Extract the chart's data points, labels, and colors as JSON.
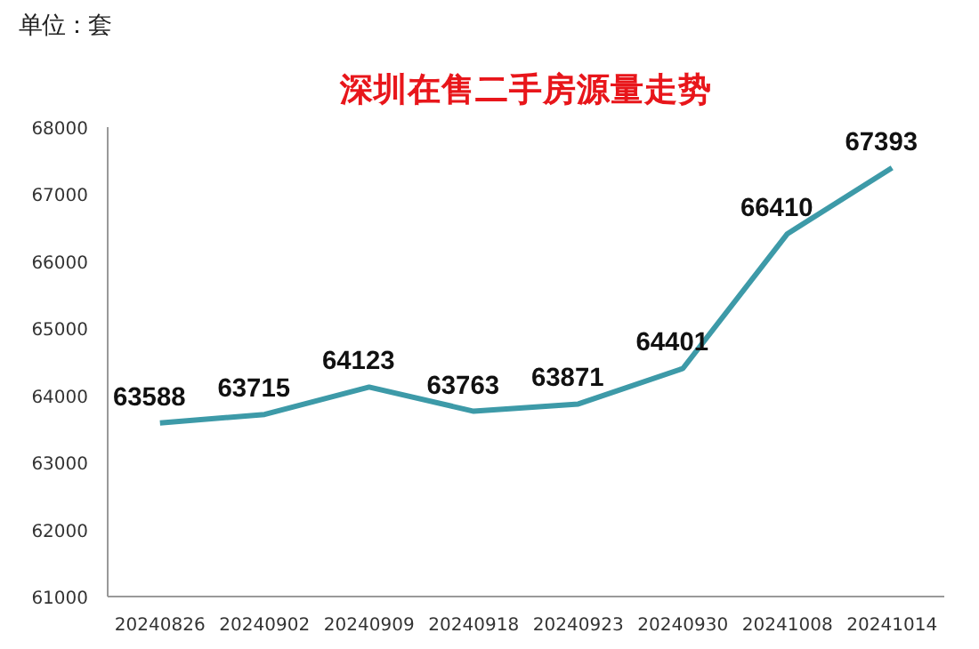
{
  "chart_data": {
    "type": "line",
    "title": "深圳在售二手房源量走势",
    "annotations": [
      "单位：套"
    ],
    "categories": [
      "20240826",
      "20240902",
      "20240909",
      "20240918",
      "20240923",
      "20240930",
      "20241008",
      "20241014"
    ],
    "series": [
      {
        "color": "#3d9aa8",
        "values": [
          63588,
          63715,
          64123,
          63763,
          63871,
          64401,
          66410,
          67393
        ]
      }
    ],
    "ylim": [
      61000,
      68000
    ],
    "yticks": [
      61000,
      62000,
      63000,
      64000,
      65000,
      66000,
      67000,
      68000
    ],
    "data_labels": true,
    "grid": false,
    "marker": "none",
    "line_style": "solid"
  }
}
